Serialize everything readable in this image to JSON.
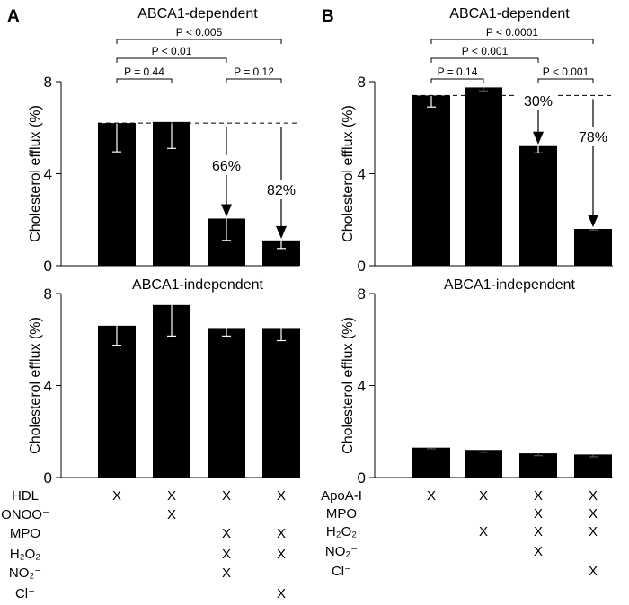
{
  "chart_data": [
    {
      "panel": "A",
      "type": "bar",
      "title": "ABCA1-dependent",
      "ylabel": "Cholesterol efflux (%)",
      "ylim": [
        0,
        8
      ],
      "yticks": [
        0,
        4,
        8
      ],
      "values": [
        6.2,
        6.25,
        2.05,
        1.1
      ],
      "error_low": [
        4.95,
        5.1,
        1.1,
        0.75
      ],
      "reference_line": 6.2,
      "comparisons": [
        {
          "from": 0,
          "to": 3,
          "label": "P < 0.005",
          "level": 0
        },
        {
          "from": 0,
          "to": 2,
          "label": "P < 0.01",
          "level": 1
        },
        {
          "from": 0,
          "to": 1,
          "label": "P = 0.44",
          "level": 2
        },
        {
          "from": 2,
          "to": 3,
          "label": "P = 0.12",
          "level": 2
        }
      ],
      "reductions": [
        {
          "bar": 2,
          "label": "66%"
        },
        {
          "bar": 3,
          "label": "82%"
        }
      ]
    },
    {
      "panel": "A",
      "type": "bar",
      "title": "ABCA1-independent",
      "ylabel": "Cholesterol efflux (%)",
      "ylim": [
        0,
        8
      ],
      "yticks": [
        0,
        4,
        8
      ],
      "values": [
        6.6,
        7.5,
        6.5,
        6.5
      ],
      "error_low": [
        5.75,
        6.15,
        6.15,
        5.95
      ]
    },
    {
      "panel": "B",
      "type": "bar",
      "title": "ABCA1-dependent",
      "ylabel": "Cholesterol efflux (%)",
      "ylim": [
        0,
        8
      ],
      "yticks": [
        0,
        4,
        8
      ],
      "values": [
        7.4,
        7.75,
        5.2,
        1.6
      ],
      "error_low": [
        6.9,
        7.6,
        4.9,
        1.55
      ],
      "reference_line": 7.4,
      "comparisons": [
        {
          "from": 0,
          "to": 3,
          "label": "P < 0.0001",
          "level": 0
        },
        {
          "from": 0,
          "to": 2,
          "label": "P < 0.001",
          "level": 1
        },
        {
          "from": 0,
          "to": 1,
          "label": "P = 0.14",
          "level": 2
        },
        {
          "from": 2,
          "to": 3,
          "label": "P < 0.001",
          "level": 2
        }
      ],
      "reductions": [
        {
          "bar": 2,
          "label": "30%"
        },
        {
          "bar": 3,
          "label": "78%"
        }
      ]
    },
    {
      "panel": "B",
      "type": "bar",
      "title": "ABCA1-independent",
      "ylabel": "Cholesterol efflux (%)",
      "ylim": [
        0,
        8
      ],
      "yticks": [
        0,
        4,
        8
      ],
      "values": [
        1.3,
        1.2,
        1.05,
        1.0
      ],
      "error_low": [
        1.25,
        1.1,
        0.95,
        0.9
      ]
    }
  ],
  "panel_labels": [
    "A",
    "B"
  ],
  "treatments": {
    "A": [
      {
        "label": "HDL",
        "marks": [
          true,
          true,
          true,
          true
        ]
      },
      {
        "label": "ONOO⁻",
        "marks": [
          false,
          true,
          false,
          false
        ]
      },
      {
        "label": "MPO",
        "marks": [
          false,
          false,
          true,
          true
        ]
      },
      {
        "label": "H₂O₂",
        "marks": [
          false,
          false,
          true,
          true
        ]
      },
      {
        "label": "NO₂⁻",
        "marks": [
          false,
          false,
          true,
          false
        ]
      },
      {
        "label": "Cl⁻",
        "marks": [
          false,
          false,
          false,
          true
        ]
      }
    ],
    "B": [
      {
        "label": "ApoA-I",
        "marks": [
          true,
          true,
          true,
          true
        ]
      },
      {
        "label": "MPO",
        "marks": [
          false,
          false,
          true,
          true
        ]
      },
      {
        "label": "H₂O₂",
        "marks": [
          false,
          true,
          true,
          true
        ]
      },
      {
        "label": "NO₂⁻",
        "marks": [
          false,
          false,
          true,
          false
        ]
      },
      {
        "label": "Cl⁻",
        "marks": [
          false,
          false,
          false,
          true
        ]
      }
    ],
    "mark_symbol": "X"
  },
  "colors": {
    "bar": "#000000",
    "error_bar": "#ffffff",
    "line": "#000000"
  }
}
